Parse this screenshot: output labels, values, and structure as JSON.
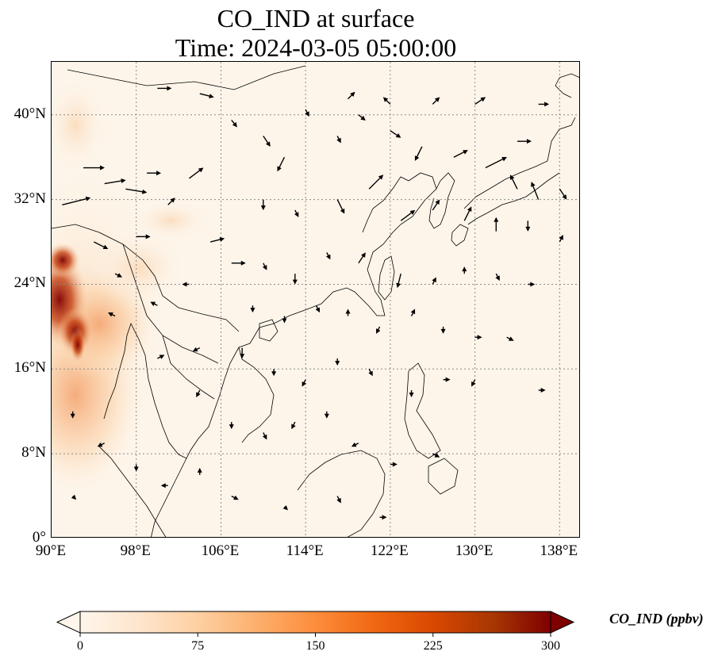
{
  "title": {
    "line1": "CO_IND at surface",
    "line2": "Time: 2024-03-05 05:00:00"
  },
  "map": {
    "extent": {
      "lon_min": 90,
      "lon_max": 140,
      "lat_min": 0,
      "lat_max": 45
    },
    "lat_ticks": [
      {
        "value": 40,
        "label": "40°N"
      },
      {
        "value": 32,
        "label": "32°N"
      },
      {
        "value": 24,
        "label": "24°N"
      },
      {
        "value": 16,
        "label": "16°N"
      },
      {
        "value": 8,
        "label": "8°N"
      },
      {
        "value": 0,
        "label": "0°"
      }
    ],
    "lon_ticks": [
      {
        "value": 90,
        "label": "90°E"
      },
      {
        "value": 98,
        "label": "98°E"
      },
      {
        "value": 106,
        "label": "106°E"
      },
      {
        "value": 114,
        "label": "114°E"
      },
      {
        "value": 122,
        "label": "122°E"
      },
      {
        "value": 130,
        "label": "130°E"
      },
      {
        "value": 138,
        "label": "138°E"
      }
    ],
    "gridlines": true,
    "colors": {
      "background": "#fdf5ea",
      "coast": "#000000",
      "grid": "#888888"
    }
  },
  "colorbar": {
    "label": "CO_IND (ppbv)",
    "ticks": [
      {
        "value": 0,
        "label": "0"
      },
      {
        "value": 75,
        "label": "75"
      },
      {
        "value": 150,
        "label": "150"
      },
      {
        "value": 225,
        "label": "225"
      },
      {
        "value": 300,
        "label": "300"
      }
    ],
    "range": [
      0,
      300
    ],
    "extend": "both",
    "colors": [
      "#fff5eb",
      "#fee6ce",
      "#fdd0a2",
      "#fdae6b",
      "#fd8d3c",
      "#f16913",
      "#d94801",
      "#a63603",
      "#7f0000"
    ]
  },
  "high_concentration": [
    {
      "lon": 90.5,
      "lat": 23.5,
      "value": 300
    },
    {
      "lon": 90.5,
      "lat": 26.0,
      "value": 280
    },
    {
      "lon": 91.5,
      "lat": 22.5,
      "value": 230
    },
    {
      "lon": 92.0,
      "lat": 20.0,
      "value": 160
    },
    {
      "lon": 92.0,
      "lat": 18.5,
      "value": 190
    },
    {
      "lon": 91.0,
      "lat": 14.0,
      "value": 90
    },
    {
      "lon": 93.0,
      "lat": 26.5,
      "value": 80
    },
    {
      "lon": 95.0,
      "lat": 30.0,
      "value": 40
    },
    {
      "lon": 95.0,
      "lat": 17.0,
      "value": 70
    }
  ],
  "wind_vectors": [
    {
      "lon": 91,
      "lat": 31.5,
      "u": 4,
      "v": 1
    },
    {
      "lon": 93,
      "lat": 35,
      "u": 3,
      "v": 0
    },
    {
      "lon": 95,
      "lat": 33.5,
      "u": 3,
      "v": 0.5
    },
    {
      "lon": 97,
      "lat": 33,
      "u": 3,
      "v": -0.5
    },
    {
      "lon": 99,
      "lat": 34.5,
      "u": 2,
      "v": 0
    },
    {
      "lon": 101,
      "lat": 31.5,
      "u": 1,
      "v": 1
    },
    {
      "lon": 103,
      "lat": 34,
      "u": 2,
      "v": 1.5
    },
    {
      "lon": 105,
      "lat": 28,
      "u": 2,
      "v": 0.5
    },
    {
      "lon": 107,
      "lat": 26,
      "u": 2,
      "v": 0
    },
    {
      "lon": 98,
      "lat": 28.5,
      "u": 2,
      "v": 0
    },
    {
      "lon": 94,
      "lat": 28,
      "u": 2,
      "v": -1
    },
    {
      "lon": 96,
      "lat": 25,
      "u": 1,
      "v": -0.5
    },
    {
      "lon": 100,
      "lat": 42.5,
      "u": 2,
      "v": 0
    },
    {
      "lon": 104,
      "lat": 42,
      "u": 2,
      "v": -0.5
    },
    {
      "lon": 107,
      "lat": 39.5,
      "u": 0.8,
      "v": -1
    },
    {
      "lon": 110,
      "lat": 38,
      "u": 1,
      "v": -1.5
    },
    {
      "lon": 112,
      "lat": 36,
      "u": -1,
      "v": -2
    },
    {
      "lon": 114,
      "lat": 40.5,
      "u": 0.5,
      "v": -1
    },
    {
      "lon": 117,
      "lat": 38,
      "u": 0.5,
      "v": -1
    },
    {
      "lon": 119,
      "lat": 40,
      "u": 1,
      "v": -0.8
    },
    {
      "lon": 122,
      "lat": 38.5,
      "u": 1.5,
      "v": -1
    },
    {
      "lon": 125,
      "lat": 37,
      "u": -1,
      "v": -2
    },
    {
      "lon": 128,
      "lat": 36,
      "u": 2,
      "v": 1
    },
    {
      "lon": 131,
      "lat": 35,
      "u": 3,
      "v": 1.5
    },
    {
      "lon": 134,
      "lat": 33,
      "u": -1,
      "v": 2
    },
    {
      "lon": 136,
      "lat": 32,
      "u": -1,
      "v": 2.5
    },
    {
      "lon": 138,
      "lat": 33,
      "u": 1,
      "v": -1.5
    },
    {
      "lon": 134,
      "lat": 37.5,
      "u": 2,
      "v": 0
    },
    {
      "lon": 136,
      "lat": 41,
      "u": 1.5,
      "v": 0
    },
    {
      "lon": 130,
      "lat": 41,
      "u": 1.5,
      "v": 1
    },
    {
      "lon": 126,
      "lat": 41,
      "u": 1,
      "v": 1
    },
    {
      "lon": 122,
      "lat": 41,
      "u": -1,
      "v": 1
    },
    {
      "lon": 118,
      "lat": 41.5,
      "u": 1,
      "v": 1
    },
    {
      "lon": 110,
      "lat": 32,
      "u": 0,
      "v": -1.5
    },
    {
      "lon": 113,
      "lat": 31,
      "u": 0.5,
      "v": -1
    },
    {
      "lon": 117,
      "lat": 32,
      "u": 1,
      "v": -2
    },
    {
      "lon": 120,
      "lat": 33,
      "u": 2,
      "v": 2
    },
    {
      "lon": 123,
      "lat": 30,
      "u": 2,
      "v": 1.5
    },
    {
      "lon": 126,
      "lat": 31,
      "u": 1,
      "v": 1.5
    },
    {
      "lon": 129,
      "lat": 30,
      "u": 1,
      "v": 2
    },
    {
      "lon": 132,
      "lat": 29,
      "u": 0,
      "v": 2
    },
    {
      "lon": 135,
      "lat": 30,
      "u": 0,
      "v": -1.5
    },
    {
      "lon": 138,
      "lat": 28,
      "u": 0.5,
      "v": 1
    },
    {
      "lon": 110,
      "lat": 26,
      "u": 0.5,
      "v": -1
    },
    {
      "lon": 113,
      "lat": 25,
      "u": 0,
      "v": -1.5
    },
    {
      "lon": 116,
      "lat": 27,
      "u": 0.5,
      "v": -1
    },
    {
      "lon": 119,
      "lat": 26,
      "u": 1,
      "v": 1.5
    },
    {
      "lon": 123,
      "lat": 25,
      "u": -0.5,
      "v": -2
    },
    {
      "lon": 126,
      "lat": 24,
      "u": 0.5,
      "v": 1
    },
    {
      "lon": 129,
      "lat": 25,
      "u": 0,
      "v": 1
    },
    {
      "lon": 132,
      "lat": 25,
      "u": 0.5,
      "v": -1
    },
    {
      "lon": 135,
      "lat": 24,
      "u": 1,
      "v": 0
    },
    {
      "lon": 109,
      "lat": 22,
      "u": 0,
      "v": -1
    },
    {
      "lon": 112,
      "lat": 21,
      "u": 0,
      "v": -1
    },
    {
      "lon": 115,
      "lat": 22,
      "u": 0.5,
      "v": -1
    },
    {
      "lon": 118,
      "lat": 21,
      "u": 0,
      "v": 1
    },
    {
      "lon": 121,
      "lat": 20,
      "u": -0.5,
      "v": -1
    },
    {
      "lon": 124,
      "lat": 21,
      "u": 0.5,
      "v": 1
    },
    {
      "lon": 127,
      "lat": 20,
      "u": 0,
      "v": -1
    },
    {
      "lon": 130,
      "lat": 19,
      "u": 1,
      "v": 0
    },
    {
      "lon": 133,
      "lat": 19,
      "u": 1,
      "v": -0.5
    },
    {
      "lon": 108,
      "lat": 18,
      "u": 0,
      "v": -1.5
    },
    {
      "lon": 111,
      "lat": 16,
      "u": 0,
      "v": -1
    },
    {
      "lon": 114,
      "lat": 15,
      "u": -0.5,
      "v": -1
    },
    {
      "lon": 117,
      "lat": 17,
      "u": 0,
      "v": -1
    },
    {
      "lon": 120,
      "lat": 16,
      "u": 0.5,
      "v": -1
    },
    {
      "lon": 124,
      "lat": 14,
      "u": 0,
      "v": -1
    },
    {
      "lon": 127,
      "lat": 15,
      "u": 1,
      "v": 0
    },
    {
      "lon": 130,
      "lat": 15,
      "u": -0.5,
      "v": -1
    },
    {
      "lon": 136,
      "lat": 14,
      "u": 1,
      "v": 0
    },
    {
      "lon": 104,
      "lat": 14,
      "u": -0.5,
      "v": -1
    },
    {
      "lon": 107,
      "lat": 11,
      "u": 0,
      "v": -1
    },
    {
      "lon": 110,
      "lat": 10,
      "u": 0.5,
      "v": -1
    },
    {
      "lon": 113,
      "lat": 11,
      "u": -0.5,
      "v": -1
    },
    {
      "lon": 116,
      "lat": 12,
      "u": 0,
      "v": -1
    },
    {
      "lon": 119,
      "lat": 9,
      "u": -1,
      "v": -0.5
    },
    {
      "lon": 122,
      "lat": 7,
      "u": 1,
      "v": 0
    },
    {
      "lon": 126,
      "lat": 8,
      "u": 1,
      "v": -0.5
    },
    {
      "lon": 104,
      "lat": 6,
      "u": 0,
      "v": 1
    },
    {
      "lon": 107,
      "lat": 4,
      "u": 1,
      "v": -0.5
    },
    {
      "lon": 112,
      "lat": 3,
      "u": 0.5,
      "v": -0.5
    },
    {
      "lon": 117,
      "lat": 4,
      "u": 0.5,
      "v": -1
    },
    {
      "lon": 121,
      "lat": 2,
      "u": 1,
      "v": 0
    },
    {
      "lon": 92,
      "lat": 12,
      "u": 0,
      "v": -1
    },
    {
      "lon": 95,
      "lat": 9,
      "u": -1,
      "v": -0.5
    },
    {
      "lon": 98,
      "lat": 7,
      "u": 0,
      "v": -1
    },
    {
      "lon": 101,
      "lat": 5,
      "u": -1,
      "v": 0
    },
    {
      "lon": 92,
      "lat": 4,
      "u": 0.5,
      "v": -0.5
    },
    {
      "lon": 96,
      "lat": 21,
      "u": -1,
      "v": 0.5
    },
    {
      "lon": 100,
      "lat": 22,
      "u": -1,
      "v": 0.5
    },
    {
      "lon": 103,
      "lat": 24,
      "u": -1,
      "v": 0
    },
    {
      "lon": 100,
      "lat": 17,
      "u": 1,
      "v": 0.5
    },
    {
      "lon": 104,
      "lat": 18,
      "u": -1,
      "v": -0.5
    }
  ]
}
